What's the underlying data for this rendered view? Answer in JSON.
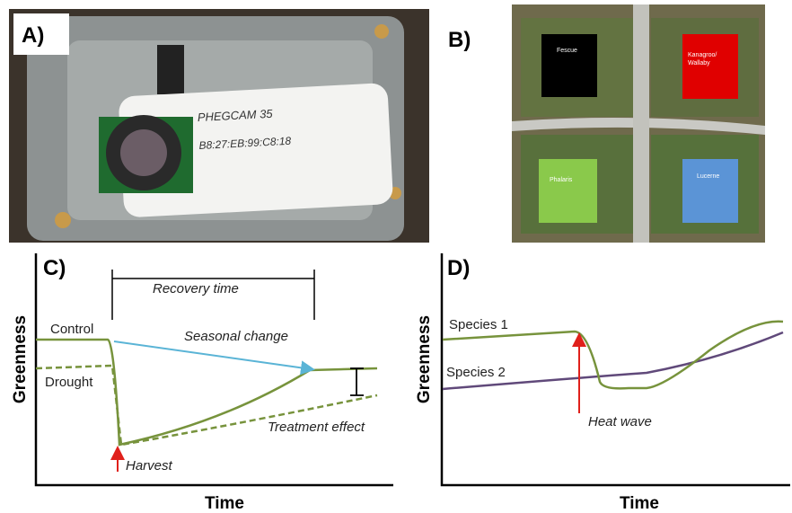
{
  "panel_a": {
    "label": "A)",
    "device_text": [
      "PHEGCAM 35",
      "B8:27:EB:99:C8:18"
    ]
  },
  "panel_b": {
    "label": "B)",
    "plots": [
      {
        "lines": [
          "Fescue"
        ]
      },
      {
        "lines": [
          "Kanagroo/",
          "Wallaby"
        ]
      },
      {
        "lines": [
          "Phalaris"
        ]
      },
      {
        "lines": [
          "Lucerne"
        ]
      }
    ]
  },
  "panel_c": {
    "label": "C)",
    "y_axis": "Greenness",
    "x_axis": "Time",
    "annotations": {
      "control": "Control",
      "drought": "Drought",
      "recovery": "Recovery time",
      "seasonal": "Seasonal change",
      "treatment": "Treatment effect",
      "harvest": "Harvest"
    }
  },
  "panel_d": {
    "label": "D)",
    "y_axis": "Greenness",
    "x_axis": "Time",
    "annotations": {
      "species1": "Species 1",
      "species2": "Species 2",
      "heatwave": "Heat wave"
    }
  }
}
